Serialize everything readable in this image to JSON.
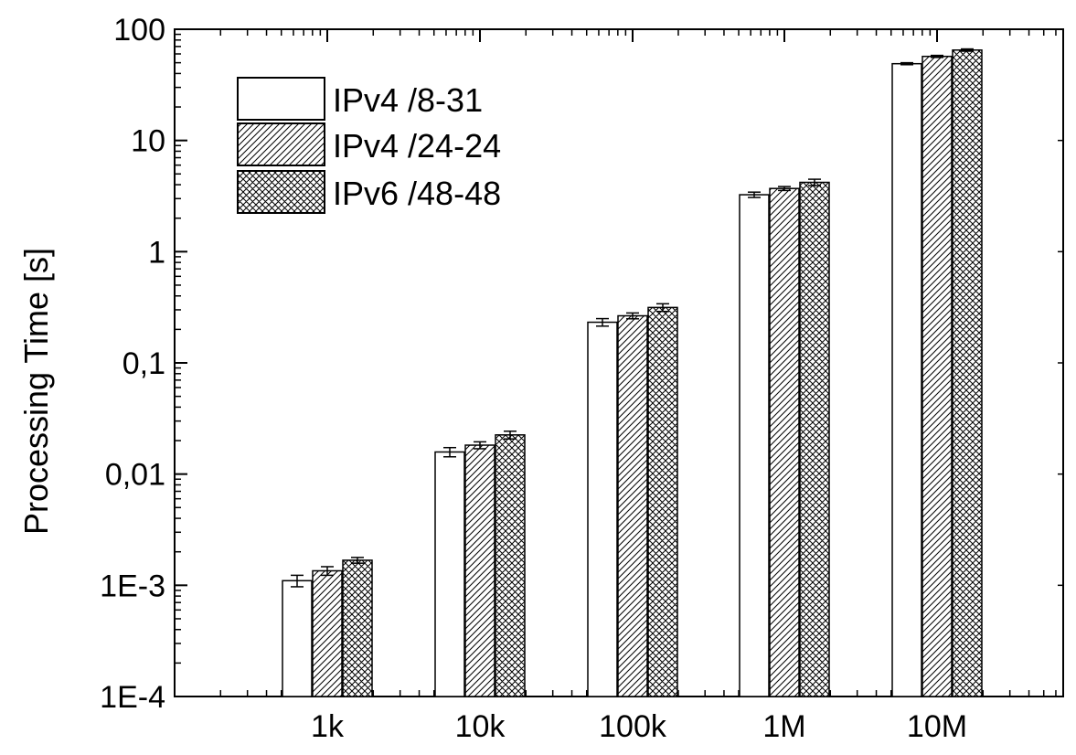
{
  "chart_data": {
    "type": "bar",
    "title": "",
    "xlabel": "",
    "ylabel": "Processing Time [s]",
    "y_scale": "log",
    "ylim": [
      0.0001,
      100
    ],
    "y_tick_labels": [
      "1E-4",
      "1E-3",
      "0,01",
      "0,1",
      "1",
      "10",
      "100"
    ],
    "categories": [
      "1k",
      "10k",
      "100k",
      "1M",
      "10M"
    ],
    "series": [
      {
        "name": "IPv4 /8-31",
        "pattern": "none",
        "values": [
          0.0011,
          0.0158,
          0.232,
          3.25,
          49
        ],
        "errors": [
          0.00013,
          0.0015,
          0.018,
          0.18,
          1.0
        ]
      },
      {
        "name": "IPv4 /24-24",
        "pattern": "diagonal",
        "values": [
          0.00135,
          0.0182,
          0.265,
          3.7,
          57
        ],
        "errors": [
          0.00012,
          0.0013,
          0.016,
          0.15,
          1.2
        ]
      },
      {
        "name": "IPv6 /48-48",
        "pattern": "crosshatch",
        "values": [
          0.00168,
          0.0225,
          0.315,
          4.2,
          65
        ],
        "errors": [
          0.0001,
          0.0018,
          0.025,
          0.28,
          1.5
        ]
      }
    ],
    "legend_position": "top-left",
    "grid": false,
    "colors": {
      "bar_fill": "#ffffff",
      "stroke": "#000000"
    }
  }
}
